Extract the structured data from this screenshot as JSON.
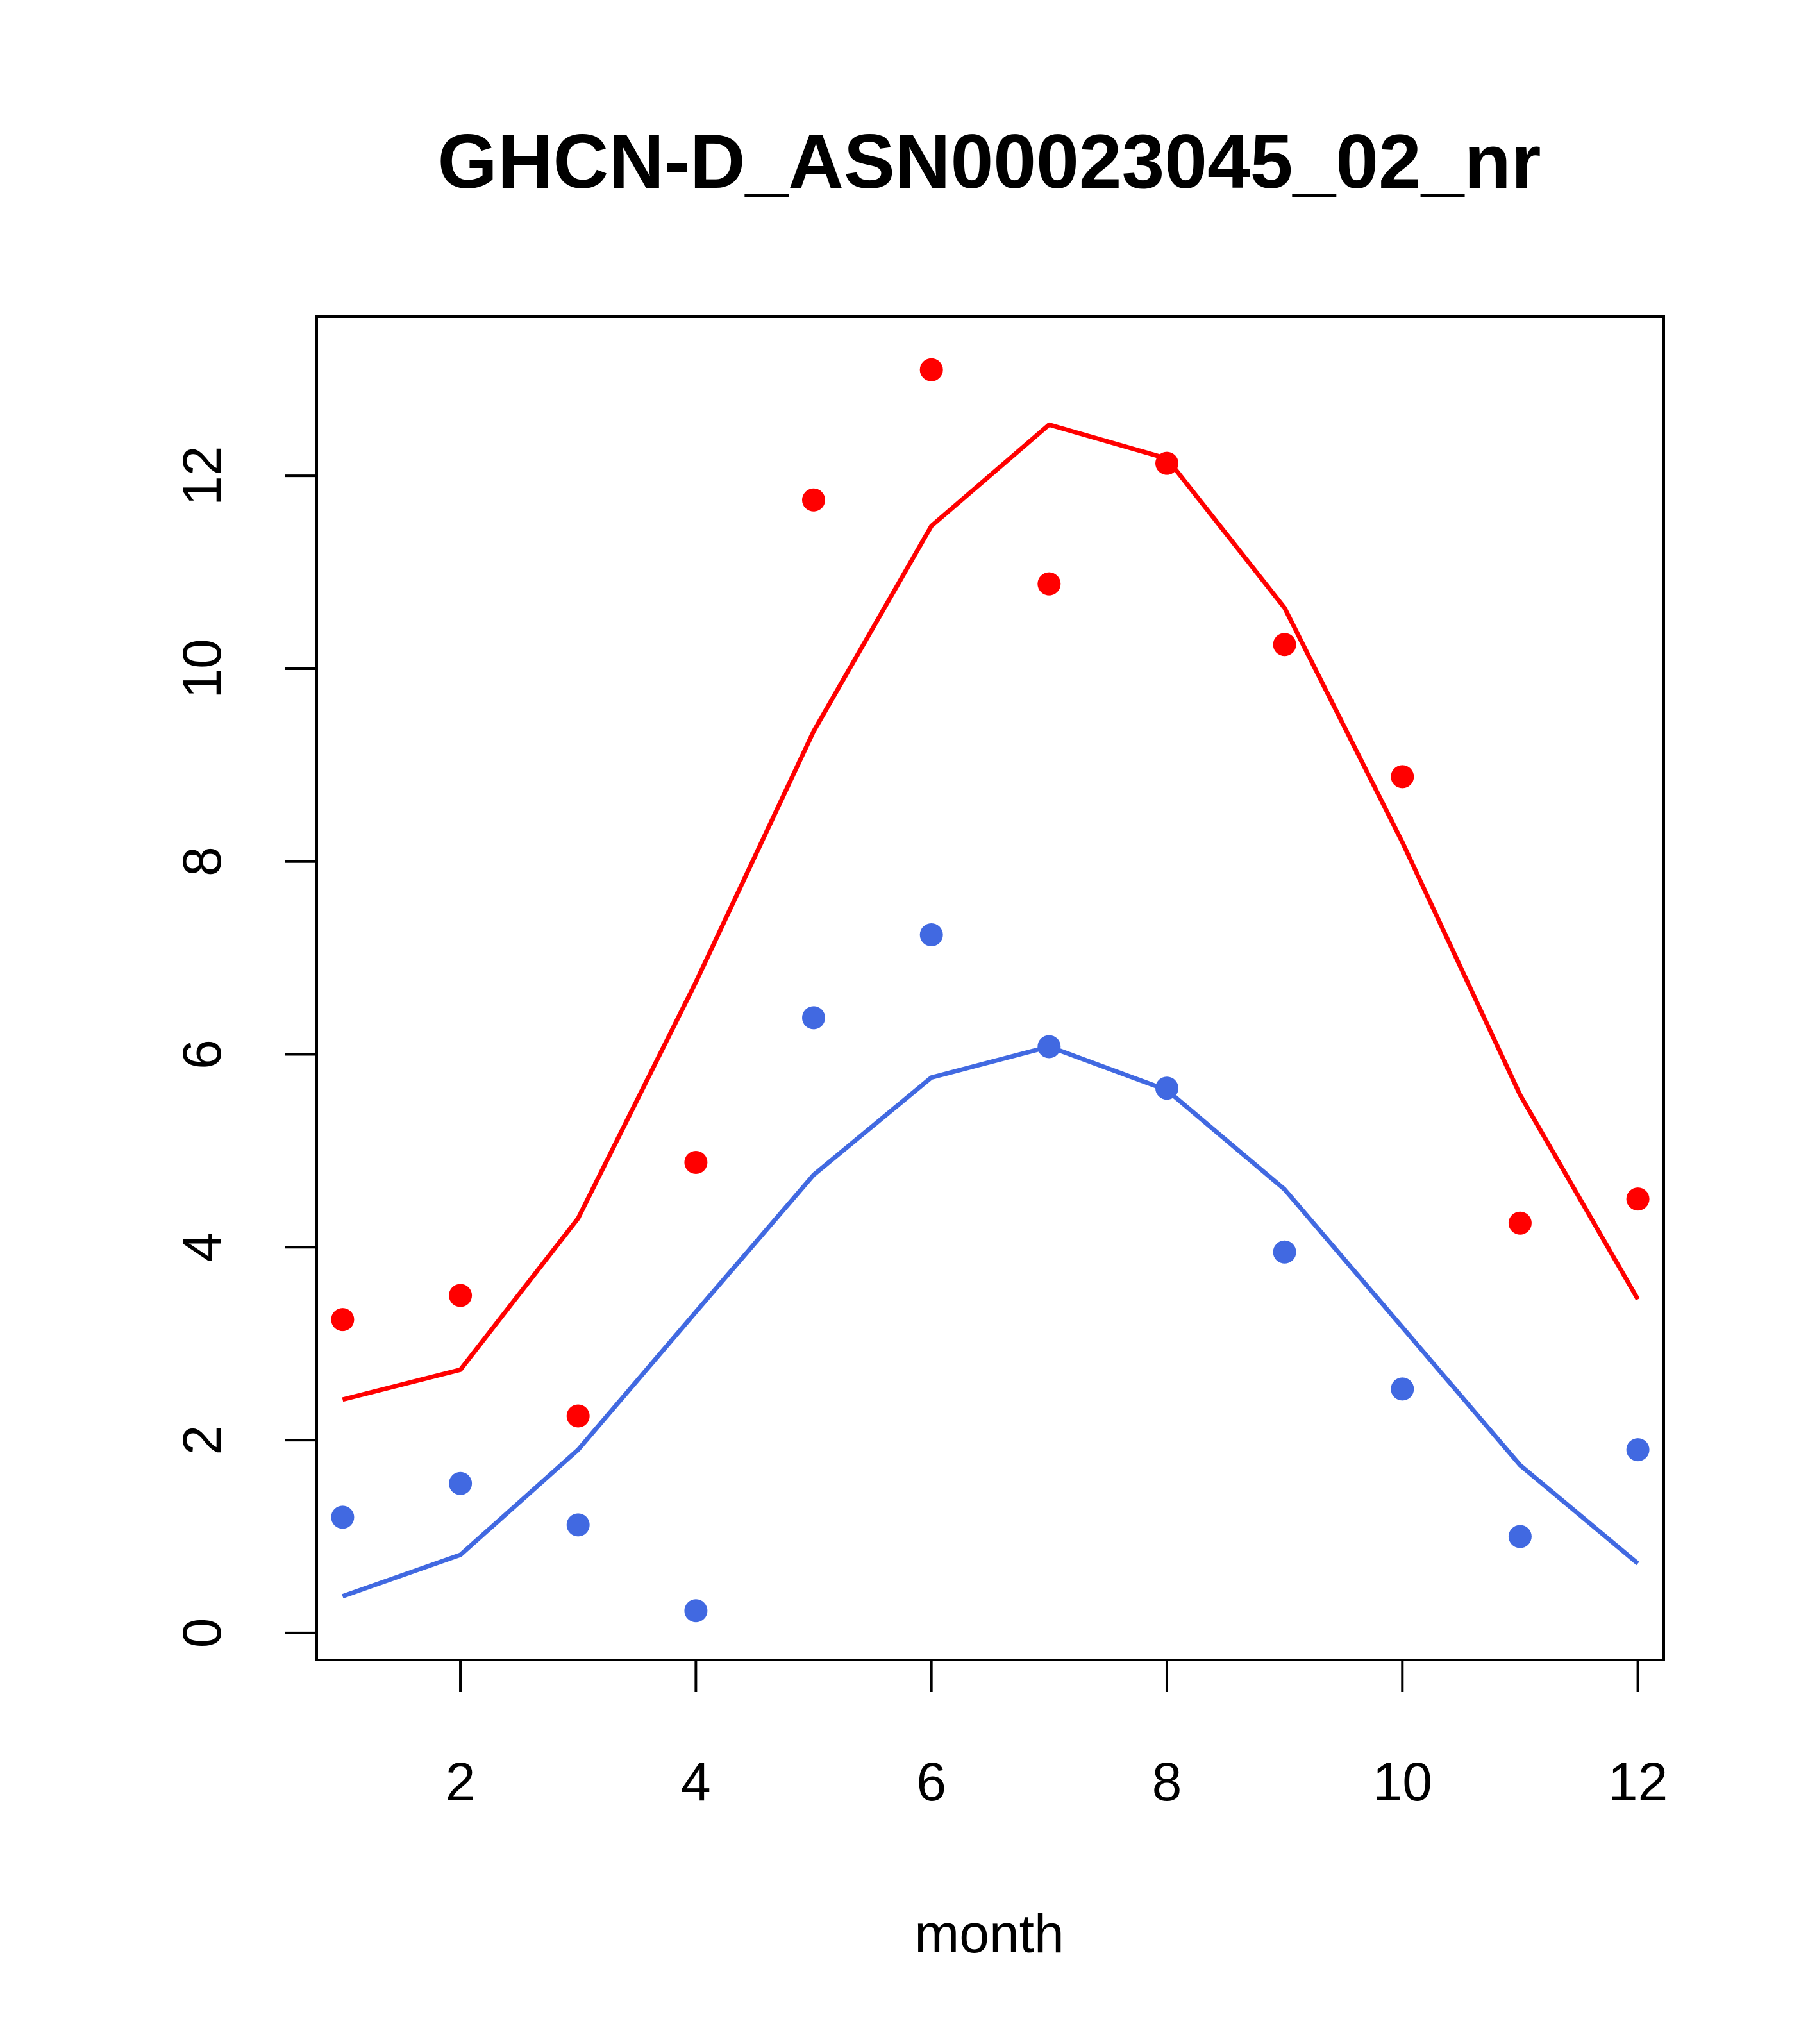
{
  "chart_data": {
    "type": "line",
    "title": "GHCN-D_ASN00023045_02_nr",
    "xlabel": "month",
    "ylabel": "",
    "xlim": [
      0.78,
      12.22
    ],
    "ylim": [
      -0.28,
      13.65
    ],
    "xticks": [
      2,
      4,
      6,
      8,
      10,
      12
    ],
    "yticks": [
      0,
      2,
      4,
      6,
      8,
      10,
      12
    ],
    "grid": false,
    "series": [
      {
        "color": "#ff0000",
        "kind": "line",
        "x": [
          1,
          2,
          3,
          4,
          5,
          6,
          7,
          8,
          9,
          10,
          11,
          12
        ],
        "values": [
          2.42,
          2.73,
          4.3,
          6.75,
          9.35,
          11.48,
          12.53,
          12.18,
          10.63,
          8.2,
          5.58,
          3.46
        ]
      },
      {
        "color": "#ff0000",
        "kind": "points",
        "x": [
          1,
          2,
          3,
          4,
          5,
          6,
          7,
          8,
          9,
          10,
          11,
          12
        ],
        "values": [
          3.25,
          3.5,
          2.25,
          4.88,
          11.75,
          13.1,
          10.88,
          12.13,
          10.25,
          8.88,
          4.25,
          4.5
        ]
      },
      {
        "color": "#4169e1",
        "kind": "line",
        "x": [
          1,
          2,
          3,
          4,
          5,
          6,
          7,
          8,
          9,
          10,
          11,
          12
        ],
        "values": [
          0.38,
          0.81,
          1.9,
          3.33,
          4.75,
          5.76,
          6.08,
          5.63,
          4.6,
          3.17,
          1.74,
          0.72
        ]
      },
      {
        "color": "#4169e1",
        "kind": "points",
        "x": [
          1,
          2,
          3,
          4,
          5,
          6,
          7,
          8,
          9,
          10,
          11,
          12
        ],
        "values": [
          1.2,
          1.55,
          1.12,
          0.23,
          6.38,
          7.24,
          6.08,
          5.65,
          3.95,
          2.53,
          1.0,
          1.9
        ]
      }
    ]
  }
}
